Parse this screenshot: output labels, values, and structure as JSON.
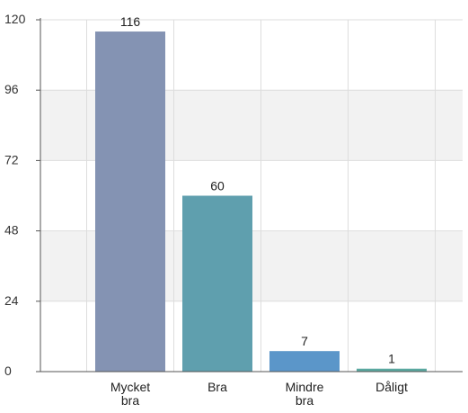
{
  "chart_data": {
    "type": "bar",
    "categories": [
      [
        "Mycket",
        "bra"
      ],
      [
        "Bra"
      ],
      [
        "Mindre",
        "bra"
      ],
      [
        "Dåligt"
      ]
    ],
    "values": [
      116,
      60,
      7,
      1
    ],
    "data_labels": [
      "116",
      "60",
      "7",
      "1"
    ],
    "yticks": [
      "0",
      "24",
      "48",
      "72",
      "96",
      "120"
    ],
    "ylim": [
      0,
      120
    ],
    "bar_colors": [
      "#8493b3",
      "#5f9fae",
      "#5b96c9",
      "#5aa8a0"
    ],
    "grid": true,
    "band_color": "#f2f2f2",
    "title": "",
    "xlabel": "",
    "ylabel": ""
  }
}
